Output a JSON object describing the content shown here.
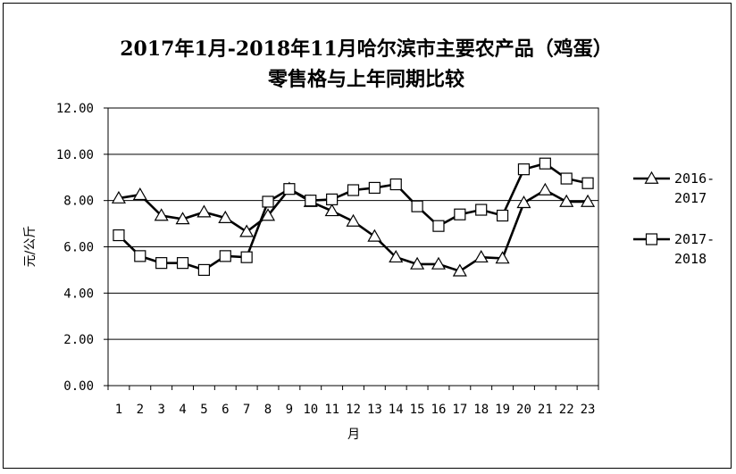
{
  "chart_data": {
    "type": "line",
    "title_line1": "2017年1月-2018年11月哈尔滨市主要农产品（鸡蛋）",
    "title_line2": "零售格与上年同期比较",
    "xlabel": "月",
    "ylabel": "元/公斤",
    "ylim": [
      0,
      12
    ],
    "yticks": [
      "0.00",
      "2.00",
      "4.00",
      "6.00",
      "8.00",
      "10.00",
      "12.00"
    ],
    "categories": [
      "1",
      "2",
      "3",
      "4",
      "5",
      "6",
      "7",
      "8",
      "9",
      "10",
      "11",
      "12",
      "13",
      "14",
      "15",
      "16",
      "17",
      "18",
      "19",
      "20",
      "21",
      "22",
      "23"
    ],
    "grid": true,
    "legend_position": "right",
    "series": [
      {
        "name_line1": "2016-",
        "name_line2": "2017",
        "marker": "triangle",
        "color": "#000000",
        "values": [
          8.1,
          8.25,
          7.35,
          7.2,
          7.5,
          7.25,
          6.65,
          7.35,
          8.5,
          7.95,
          7.55,
          7.1,
          6.45,
          5.55,
          5.25,
          5.25,
          4.95,
          5.55,
          5.5,
          7.9,
          8.45,
          7.95,
          7.95
        ]
      },
      {
        "name_line1": "2017-",
        "name_line2": "2018",
        "marker": "square",
        "color": "#000000",
        "values": [
          6.5,
          5.6,
          5.3,
          5.3,
          5.0,
          5.6,
          5.55,
          7.95,
          8.5,
          8.0,
          8.05,
          8.45,
          8.55,
          8.7,
          7.75,
          6.9,
          7.4,
          7.6,
          7.35,
          9.35,
          9.6,
          8.95,
          8.75
        ]
      }
    ]
  }
}
